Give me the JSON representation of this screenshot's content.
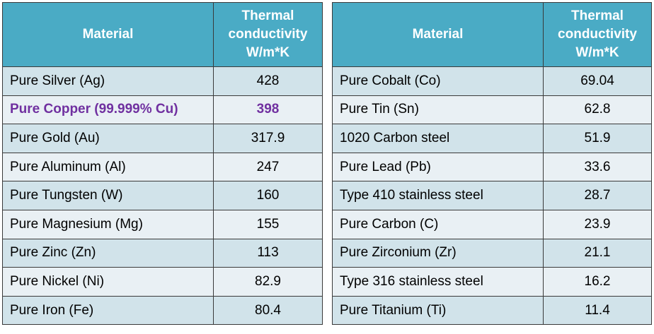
{
  "tables": [
    {
      "headers": [
        "Material",
        "Thermal conductivity W/m*K"
      ],
      "rows": [
        {
          "material": "Pure Silver (Ag)",
          "value": "428"
        },
        {
          "material": "Pure Copper (99.999% Cu)",
          "value": "398",
          "highlight": true
        },
        {
          "material": "Pure Gold (Au)",
          "value": "317.9"
        },
        {
          "material": "Pure Aluminum (Al)",
          "value": "247"
        },
        {
          "material": "Pure Tungsten (W)",
          "value": "160"
        },
        {
          "material": "Pure Magnesium (Mg)",
          "value": "155"
        },
        {
          "material": "Pure Zinc (Zn)",
          "value": "113"
        },
        {
          "material": "Pure Nickel (Ni)",
          "value": "82.9"
        },
        {
          "material": "Pure Iron (Fe)",
          "value": "80.4"
        }
      ]
    },
    {
      "headers": [
        "Material",
        "Thermal conductivity W/m*K"
      ],
      "rows": [
        {
          "material": "Pure Cobalt (Co)",
          "value": "69.04"
        },
        {
          "material": "Pure Tin (Sn)",
          "value": "62.8"
        },
        {
          "material": "1020 Carbon steel",
          "value": "51.9"
        },
        {
          "material": "Pure Lead (Pb)",
          "value": "33.6"
        },
        {
          "material": "Type 410 stainless steel",
          "value": "28.7"
        },
        {
          "material": "Pure Carbon (C)",
          "value": "23.9"
        },
        {
          "material": "Pure Zirconium (Zr)",
          "value": "21.1"
        },
        {
          "material": "Type 316 stainless steel",
          "value": "16.2"
        },
        {
          "material": "Pure Titanium (Ti)",
          "value": "11.4"
        }
      ]
    }
  ],
  "colors": {
    "header": "#4aabc5",
    "row_odd": "#d1e3ea",
    "row_even": "#e9f0f4",
    "highlight_text": "#7030a0"
  }
}
